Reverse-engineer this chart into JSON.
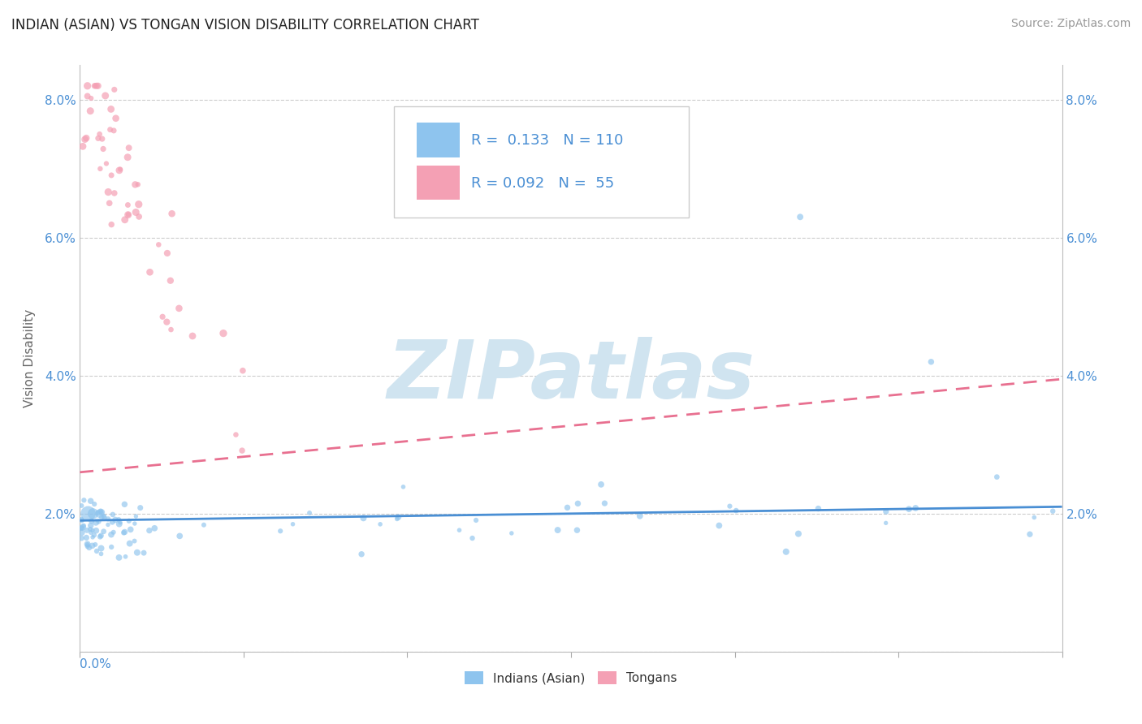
{
  "title": "INDIAN (ASIAN) VS TONGAN VISION DISABILITY CORRELATION CHART",
  "source_text": "Source: ZipAtlas.com",
  "ylabel": "Vision Disability",
  "legend1_label": "Indians (Asian)",
  "legend2_label": "Tongans",
  "R1": 0.133,
  "N1": 110,
  "R2": 0.092,
  "N2": 55,
  "color1": "#8EC4EE",
  "color2": "#F4A0B4",
  "trend1_color": "#4A8FD4",
  "trend2_color": "#E87090",
  "watermark_text": "ZIPatlas",
  "watermark_color": "#D0E4F0",
  "xlim": [
    0.0,
    0.6
  ],
  "ylim": [
    0.0,
    0.085
  ],
  "yticks": [
    0.0,
    0.02,
    0.04,
    0.06,
    0.08
  ],
  "ytick_labels_left": [
    "",
    "2.0%",
    "4.0%",
    "6.0%",
    "8.0%"
  ],
  "ytick_labels_right": [
    "",
    "2.0%",
    "4.0%",
    "6.0%",
    "8.0%"
  ],
  "grid_color": "#CCCCCC",
  "bg_color": "#FFFFFF",
  "tick_color": "#4A8FD4",
  "title_fontsize": 12,
  "source_fontsize": 10,
  "ytick_fontsize": 11,
  "trend1_start_x": 0.0,
  "trend1_end_x": 0.6,
  "trend1_start_y": 0.019,
  "trend1_end_y": 0.021,
  "trend2_start_x": 0.0,
  "trend2_end_x": 0.6,
  "trend2_start_y": 0.026,
  "trend2_end_y": 0.0395
}
